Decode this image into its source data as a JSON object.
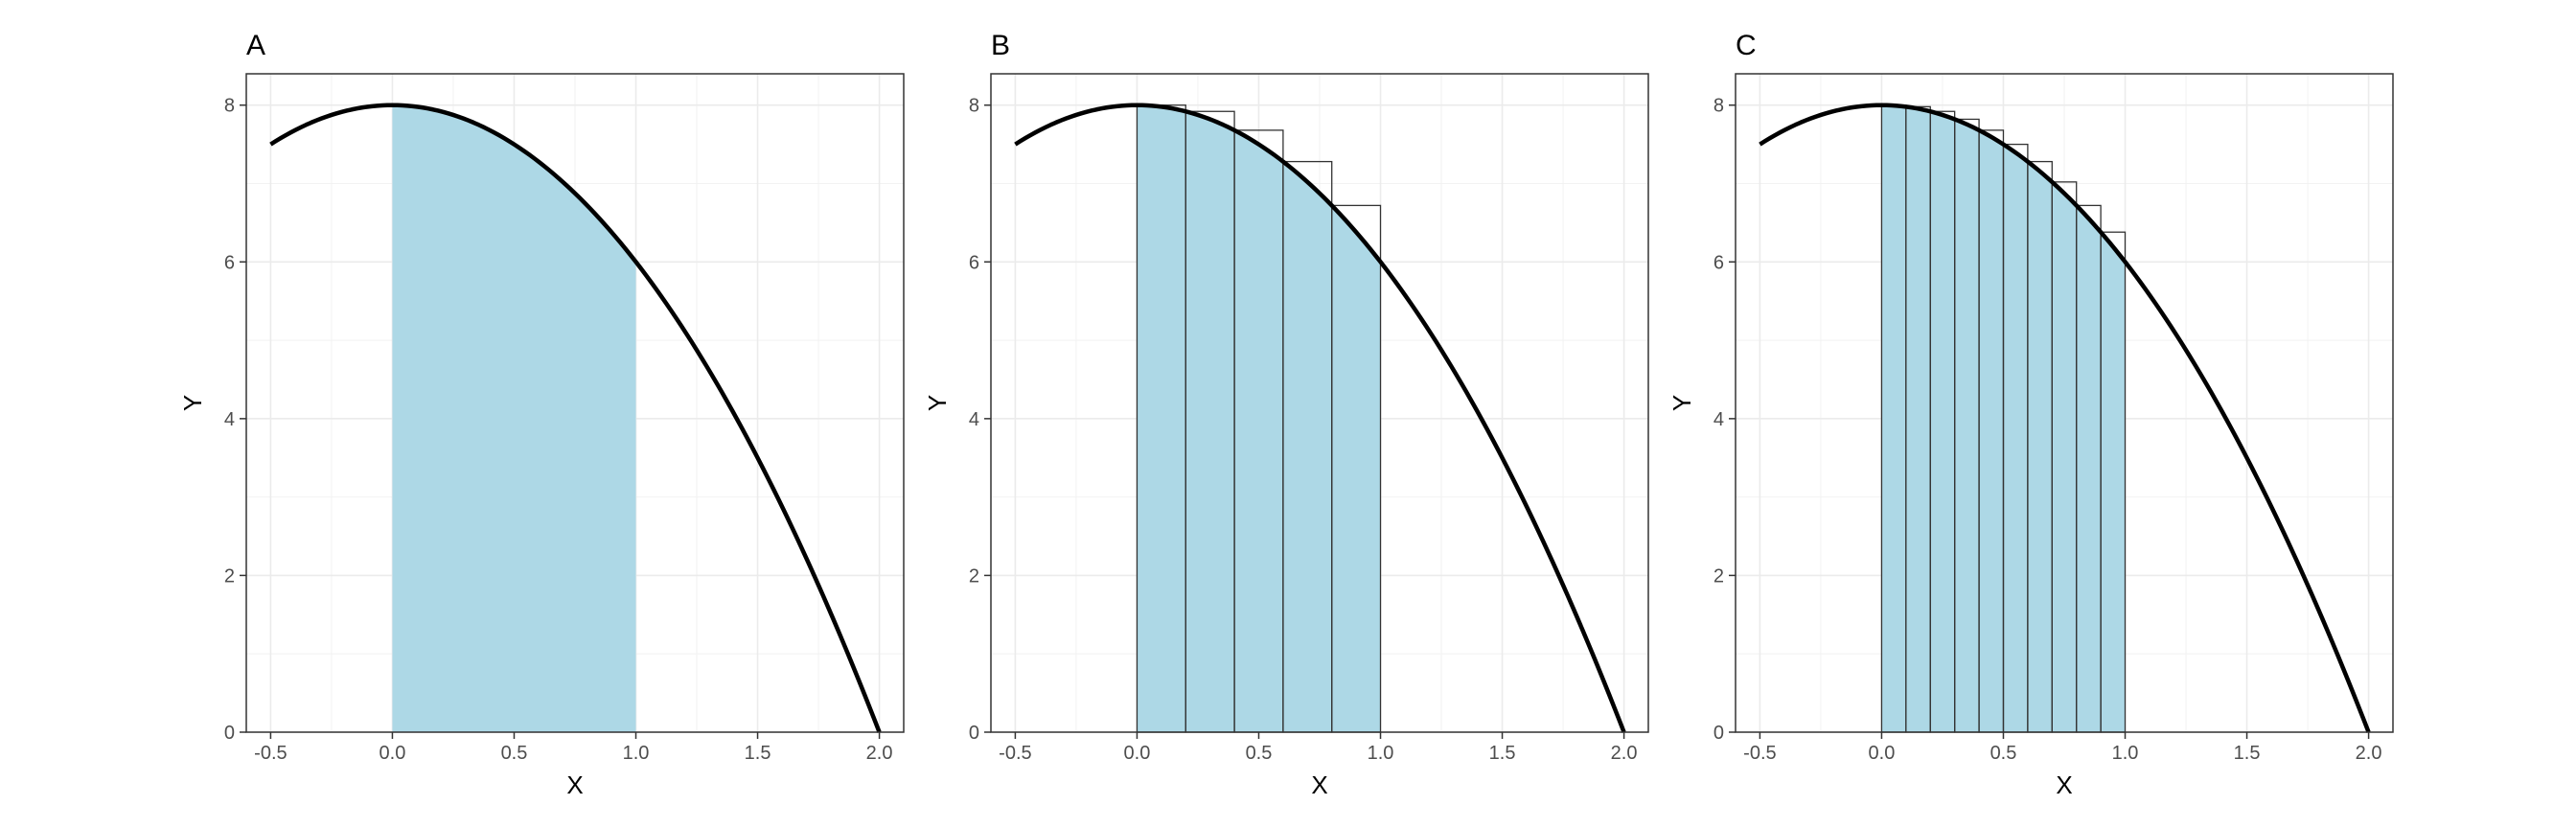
{
  "chart_data": [
    {
      "panel": "A",
      "type": "area",
      "xlabel": "X",
      "ylabel": "Y",
      "xlim": [
        -0.6,
        2.1
      ],
      "ylim": [
        0,
        8.4
      ],
      "xticks": [
        -0.5,
        0.0,
        0.5,
        1.0,
        1.5,
        2.0
      ],
      "xtick_labels": [
        "-0.5",
        "0.0",
        "0.5",
        "1.0",
        "1.5",
        "2.0"
      ],
      "yticks": [
        0,
        2,
        4,
        6,
        8
      ],
      "ytick_labels": [
        "0",
        "2",
        "4",
        "6",
        "8"
      ],
      "curve": {
        "formula": "y = 8 - 2x^2",
        "x_from": -0.5,
        "x_to": 2.0
      },
      "shaded_area": {
        "x_from": 0.0,
        "x_to": 1.0
      },
      "rectangles": [],
      "grid": true,
      "colors": {
        "fill": "#add8e6",
        "curve": "#000000"
      }
    },
    {
      "panel": "B",
      "type": "area",
      "xlabel": "X",
      "ylabel": "Y",
      "xlim": [
        -0.6,
        2.1
      ],
      "ylim": [
        0,
        8.4
      ],
      "xticks": [
        -0.5,
        0.0,
        0.5,
        1.0,
        1.5,
        2.0
      ],
      "xtick_labels": [
        "-0.5",
        "0.0",
        "0.5",
        "1.0",
        "1.5",
        "2.0"
      ],
      "yticks": [
        0,
        2,
        4,
        6,
        8
      ],
      "ytick_labels": [
        "0",
        "2",
        "4",
        "6",
        "8"
      ],
      "curve": {
        "formula": "y = 8 - 2x^2",
        "x_from": -0.5,
        "x_to": 2.0
      },
      "shaded_area": {
        "x_from": 0.0,
        "x_to": 1.0
      },
      "rectangles": [
        {
          "x0": 0.0,
          "x1": 0.2,
          "height": 8.0
        },
        {
          "x0": 0.2,
          "x1": 0.4,
          "height": 7.92
        },
        {
          "x0": 0.4,
          "x1": 0.6,
          "height": 7.68
        },
        {
          "x0": 0.6,
          "x1": 0.8,
          "height": 7.28
        },
        {
          "x0": 0.8,
          "x1": 1.0,
          "height": 6.72
        }
      ],
      "grid": true,
      "colors": {
        "fill": "#add8e6",
        "curve": "#000000"
      }
    },
    {
      "panel": "C",
      "type": "area",
      "xlabel": "X",
      "ylabel": "Y",
      "xlim": [
        -0.6,
        2.1
      ],
      "ylim": [
        0,
        8.4
      ],
      "xticks": [
        -0.5,
        0.0,
        0.5,
        1.0,
        1.5,
        2.0
      ],
      "xtick_labels": [
        "-0.5",
        "0.0",
        "0.5",
        "1.0",
        "1.5",
        "2.0"
      ],
      "yticks": [
        0,
        2,
        4,
        6,
        8
      ],
      "ytick_labels": [
        "0",
        "2",
        "4",
        "6",
        "8"
      ],
      "curve": {
        "formula": "y = 8 - 2x^2",
        "x_from": -0.5,
        "x_to": 2.0
      },
      "shaded_area": {
        "x_from": 0.0,
        "x_to": 1.0
      },
      "rectangles": [
        {
          "x0": 0.0,
          "x1": 0.1,
          "height": 8.0
        },
        {
          "x0": 0.1,
          "x1": 0.2,
          "height": 7.98
        },
        {
          "x0": 0.2,
          "x1": 0.3,
          "height": 7.92
        },
        {
          "x0": 0.3,
          "x1": 0.4,
          "height": 7.82
        },
        {
          "x0": 0.4,
          "x1": 0.5,
          "height": 7.68
        },
        {
          "x0": 0.5,
          "x1": 0.6,
          "height": 7.5
        },
        {
          "x0": 0.6,
          "x1": 0.7,
          "height": 7.28
        },
        {
          "x0": 0.7,
          "x1": 0.8,
          "height": 7.02
        },
        {
          "x0": 0.8,
          "x1": 0.9,
          "height": 6.72
        },
        {
          "x0": 0.9,
          "x1": 1.0,
          "height": 6.38
        }
      ],
      "grid": true,
      "colors": {
        "fill": "#add8e6",
        "curve": "#000000"
      }
    }
  ]
}
